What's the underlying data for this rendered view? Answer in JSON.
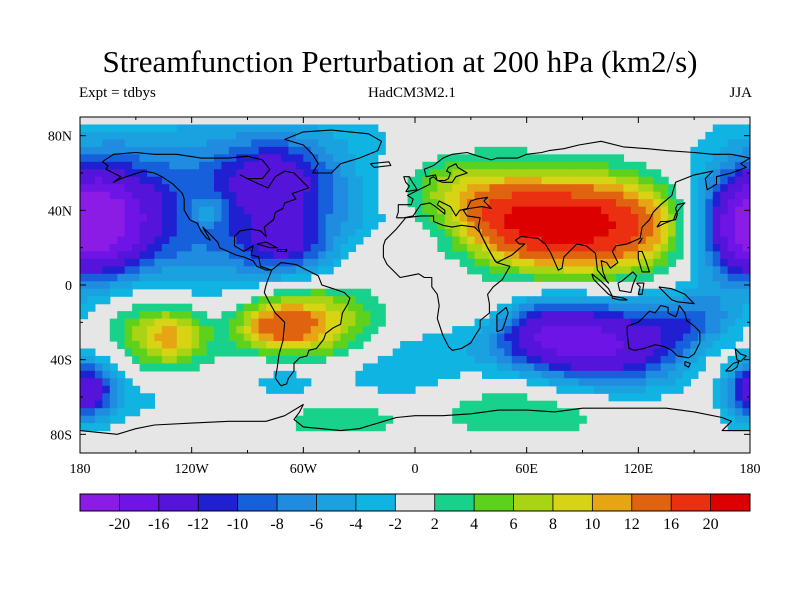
{
  "title": "Streamfunction Perturbation at 200 hPa (km2/s)",
  "left_label": "Expt = tdbys",
  "center_label": "HadCM3M2.1",
  "right_label": "JJA",
  "map": {
    "x_ticks": [
      "180",
      "120W",
      "60W",
      "0",
      "60E",
      "120E",
      "180"
    ],
    "y_ticks": [
      "80N",
      "40N",
      "0",
      "40S",
      "80S"
    ],
    "x_tick_lons": [
      -180,
      -120,
      -60,
      0,
      60,
      120,
      180
    ],
    "y_tick_lats": [
      80,
      40,
      0,
      -40,
      -80
    ],
    "lon_range": [
      -180,
      180
    ],
    "lat_range": [
      -90,
      90
    ],
    "missing_color": "#e6e6e6"
  },
  "colorbar": {
    "labels": [
      "-20",
      "-16",
      "-12",
      "-10",
      "-8",
      "-6",
      "-4",
      "-2",
      "2",
      "4",
      "6",
      "8",
      "10",
      "12",
      "16",
      "20"
    ],
    "levels": [
      -20,
      -16,
      -12,
      -10,
      -8,
      -6,
      -4,
      -2,
      2,
      4,
      6,
      8,
      10,
      12,
      16,
      20
    ],
    "colors": [
      "#8a1ce6",
      "#6e14e6",
      "#5514d9",
      "#2020d2",
      "#1660dc",
      "#1f8ce0",
      "#1aa2e0",
      "#10b4e2",
      "#e6e6e6",
      "#18d28c",
      "#5ed11c",
      "#a8d414",
      "#d6d414",
      "#e6a614",
      "#e06410",
      "#ea3010",
      "#dc0000"
    ]
  }
}
